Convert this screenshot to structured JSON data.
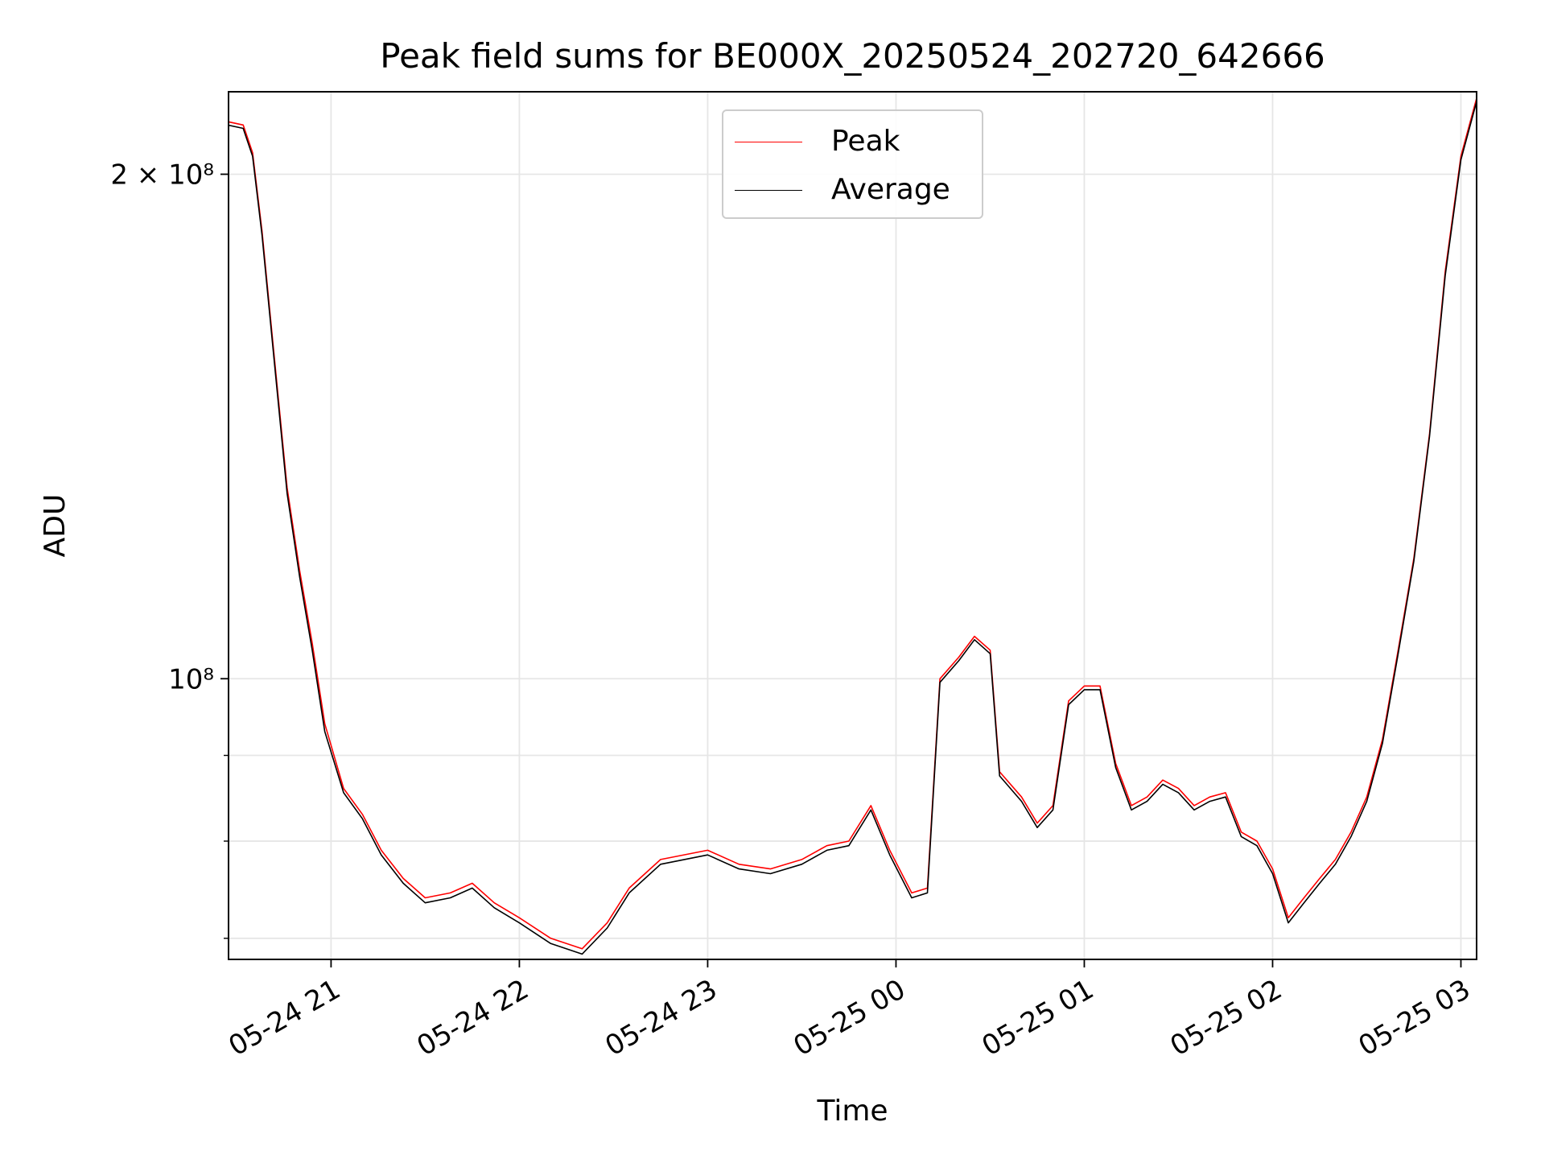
{
  "chart_data": {
    "type": "line",
    "title": "Peak field sums for BE000X_20250524_202720_642666",
    "xlabel": "Time",
    "ylabel": "ADU",
    "yscale": "log",
    "xlim": [
      "2025-05-24 20:27:20",
      "2025-05-25 03:05:00"
    ],
    "ylim": [
      68000000,
      224000000
    ],
    "x_ticks": [
      "05-24 21",
      "05-24 22",
      "05-24 23",
      "05-25 00",
      "05-25 01",
      "05-25 02",
      "05-25 03"
    ],
    "y_tick_labels": [
      {
        "value": 200000000,
        "label": "2 × 10⁸"
      },
      {
        "value": 100000000,
        "label": "10⁸"
      }
    ],
    "y_minor_ticks": [
      70000000,
      80000000,
      90000000
    ],
    "grid": true,
    "legend_position": "upper center",
    "colors": {
      "Peak": "#ff0000",
      "Average": "#000000"
    },
    "series": [
      {
        "name": "Peak",
        "points": [
          [
            "2025-05-24 20:27",
            215000000
          ],
          [
            "2025-05-24 20:32",
            214000000
          ],
          [
            "2025-05-24 20:35",
            206000000
          ],
          [
            "2025-05-24 20:38",
            185000000
          ],
          [
            "2025-05-24 20:42",
            155000000
          ],
          [
            "2025-05-24 20:46",
            130000000
          ],
          [
            "2025-05-24 20:50",
            116000000
          ],
          [
            "2025-05-24 20:54",
            105000000
          ],
          [
            "2025-05-24 20:58",
            94000000
          ],
          [
            "2025-05-24 21:04",
            86000000
          ],
          [
            "2025-05-24 21:10",
            83000000
          ],
          [
            "2025-05-24 21:16",
            79000000
          ],
          [
            "2025-05-24 21:23",
            76000000
          ],
          [
            "2025-05-24 21:30",
            74000000
          ],
          [
            "2025-05-24 21:38",
            74500000
          ],
          [
            "2025-05-24 21:45",
            75500000
          ],
          [
            "2025-05-24 21:52",
            73500000
          ],
          [
            "2025-05-24 22:00",
            72000000
          ],
          [
            "2025-05-24 22:10",
            70000000
          ],
          [
            "2025-05-24 22:20",
            69000000
          ],
          [
            "2025-05-24 22:28",
            71500000
          ],
          [
            "2025-05-24 22:35",
            75000000
          ],
          [
            "2025-05-24 22:45",
            78000000
          ],
          [
            "2025-05-24 23:00",
            79000000
          ],
          [
            "2025-05-24 23:10",
            77500000
          ],
          [
            "2025-05-24 23:20",
            77000000
          ],
          [
            "2025-05-24 23:30",
            78000000
          ],
          [
            "2025-05-24 23:38",
            79500000
          ],
          [
            "2025-05-24 23:45",
            80000000
          ],
          [
            "2025-05-24 23:52",
            84000000
          ],
          [
            "2025-05-24 23:58",
            79000000
          ],
          [
            "2025-05-25 00:05",
            74500000
          ],
          [
            "2025-05-25 00:10",
            75000000
          ],
          [
            "2025-05-25 00:14",
            100000000
          ],
          [
            "2025-05-25 00:20",
            103000000
          ],
          [
            "2025-05-25 00:25",
            106000000
          ],
          [
            "2025-05-25 00:30",
            104000000
          ],
          [
            "2025-05-25 00:33",
            88000000
          ],
          [
            "2025-05-25 00:40",
            85000000
          ],
          [
            "2025-05-25 00:45",
            82000000
          ],
          [
            "2025-05-25 00:50",
            84000000
          ],
          [
            "2025-05-25 00:55",
            97000000
          ],
          [
            "2025-05-25 01:00",
            99000000
          ],
          [
            "2025-05-25 01:05",
            99000000
          ],
          [
            "2025-05-25 01:10",
            89000000
          ],
          [
            "2025-05-25 01:15",
            84000000
          ],
          [
            "2025-05-25 01:20",
            85000000
          ],
          [
            "2025-05-25 01:25",
            87000000
          ],
          [
            "2025-05-25 01:30",
            86000000
          ],
          [
            "2025-05-25 01:35",
            84000000
          ],
          [
            "2025-05-25 01:40",
            85000000
          ],
          [
            "2025-05-25 01:45",
            85500000
          ],
          [
            "2025-05-25 01:50",
            81000000
          ],
          [
            "2025-05-25 01:55",
            80000000
          ],
          [
            "2025-05-25 02:00",
            77000000
          ],
          [
            "2025-05-25 02:05",
            72000000
          ],
          [
            "2025-05-25 02:10",
            74000000
          ],
          [
            "2025-05-25 02:15",
            76000000
          ],
          [
            "2025-05-25 02:20",
            78000000
          ],
          [
            "2025-05-25 02:25",
            81000000
          ],
          [
            "2025-05-25 02:30",
            85000000
          ],
          [
            "2025-05-25 02:35",
            92000000
          ],
          [
            "2025-05-25 02:40",
            104000000
          ],
          [
            "2025-05-25 02:45",
            118000000
          ],
          [
            "2025-05-25 02:50",
            140000000
          ],
          [
            "2025-05-25 02:55",
            175000000
          ],
          [
            "2025-05-25 03:00",
            205000000
          ],
          [
            "2025-05-25 03:05",
            222000000
          ]
        ]
      },
      {
        "name": "Average",
        "points": [
          [
            "2025-05-24 20:27",
            214000000
          ],
          [
            "2025-05-24 20:32",
            213000000
          ],
          [
            "2025-05-24 20:35",
            205000000
          ],
          [
            "2025-05-24 20:38",
            184000000
          ],
          [
            "2025-05-24 20:42",
            154000000
          ],
          [
            "2025-05-24 20:46",
            129000000
          ],
          [
            "2025-05-24 20:50",
            115000000
          ],
          [
            "2025-05-24 20:54",
            104000000
          ],
          [
            "2025-05-24 20:58",
            93000000
          ],
          [
            "2025-05-24 21:04",
            85500000
          ],
          [
            "2025-05-24 21:10",
            82500000
          ],
          [
            "2025-05-24 21:16",
            78500000
          ],
          [
            "2025-05-24 21:23",
            75500000
          ],
          [
            "2025-05-24 21:30",
            73500000
          ],
          [
            "2025-05-24 21:38",
            74000000
          ],
          [
            "2025-05-24 21:45",
            75000000
          ],
          [
            "2025-05-24 21:52",
            73000000
          ],
          [
            "2025-05-24 22:00",
            71500000
          ],
          [
            "2025-05-24 22:10",
            69500000
          ],
          [
            "2025-05-24 22:20",
            68500000
          ],
          [
            "2025-05-24 22:28",
            71000000
          ],
          [
            "2025-05-24 22:35",
            74500000
          ],
          [
            "2025-05-24 22:45",
            77500000
          ],
          [
            "2025-05-24 23:00",
            78500000
          ],
          [
            "2025-05-24 23:10",
            77000000
          ],
          [
            "2025-05-24 23:20",
            76500000
          ],
          [
            "2025-05-24 23:30",
            77500000
          ],
          [
            "2025-05-24 23:38",
            79000000
          ],
          [
            "2025-05-24 23:45",
            79500000
          ],
          [
            "2025-05-24 23:52",
            83500000
          ],
          [
            "2025-05-24 23:58",
            78500000
          ],
          [
            "2025-05-25 00:05",
            74000000
          ],
          [
            "2025-05-25 00:10",
            74500000
          ],
          [
            "2025-05-25 00:14",
            99500000
          ],
          [
            "2025-05-25 00:20",
            102500000
          ],
          [
            "2025-05-25 00:25",
            105500000
          ],
          [
            "2025-05-25 00:30",
            103500000
          ],
          [
            "2025-05-25 00:33",
            87500000
          ],
          [
            "2025-05-25 00:40",
            84500000
          ],
          [
            "2025-05-25 00:45",
            81500000
          ],
          [
            "2025-05-25 00:50",
            83500000
          ],
          [
            "2025-05-25 00:55",
            96500000
          ],
          [
            "2025-05-25 01:00",
            98500000
          ],
          [
            "2025-05-25 01:05",
            98500000
          ],
          [
            "2025-05-25 01:10",
            88500000
          ],
          [
            "2025-05-25 01:15",
            83500000
          ],
          [
            "2025-05-25 01:20",
            84500000
          ],
          [
            "2025-05-25 01:25",
            86500000
          ],
          [
            "2025-05-25 01:30",
            85500000
          ],
          [
            "2025-05-25 01:35",
            83500000
          ],
          [
            "2025-05-25 01:40",
            84500000
          ],
          [
            "2025-05-25 01:45",
            85000000
          ],
          [
            "2025-05-25 01:50",
            80500000
          ],
          [
            "2025-05-25 01:55",
            79500000
          ],
          [
            "2025-05-25 02:00",
            76500000
          ],
          [
            "2025-05-25 02:05",
            71500000
          ],
          [
            "2025-05-25 02:10",
            73500000
          ],
          [
            "2025-05-25 02:15",
            75500000
          ],
          [
            "2025-05-25 02:20",
            77500000
          ],
          [
            "2025-05-25 02:25",
            80500000
          ],
          [
            "2025-05-25 02:30",
            84500000
          ],
          [
            "2025-05-25 02:35",
            91500000
          ],
          [
            "2025-05-25 02:40",
            103500000
          ],
          [
            "2025-05-25 02:45",
            117500000
          ],
          [
            "2025-05-25 02:50",
            139500000
          ],
          [
            "2025-05-25 02:55",
            174000000
          ],
          [
            "2025-05-25 03:00",
            204000000
          ],
          [
            "2025-05-25 03:05",
            221000000
          ]
        ]
      }
    ]
  }
}
